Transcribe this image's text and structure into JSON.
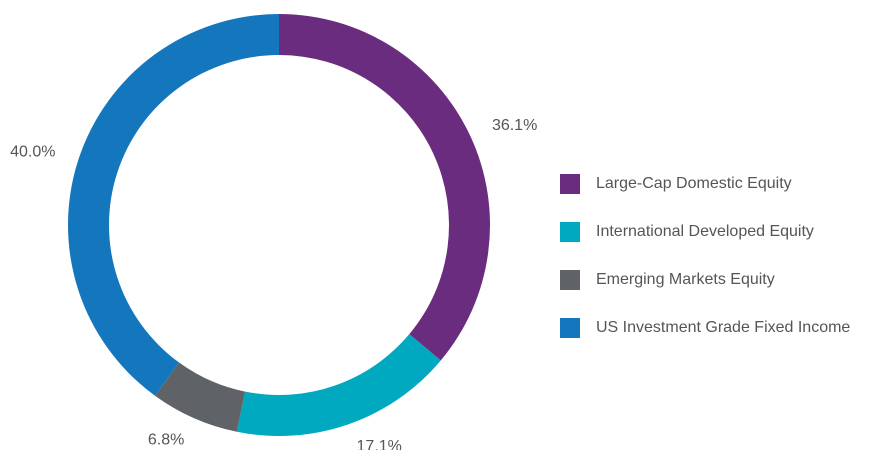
{
  "chart_data": {
    "type": "pie",
    "donut": true,
    "categories": [
      "Large-Cap Domestic Equity",
      "International Developed Equity",
      "Emerging Markets Equity",
      "US Investment Grade Fixed Income"
    ],
    "values": [
      36.1,
      17.1,
      6.8,
      40.0
    ],
    "value_labels": [
      "36.1%",
      "17.1%",
      "6.8%",
      "40.0%"
    ],
    "colors": [
      "#6a2c7e",
      "#00a9c0",
      "#5f6368",
      "#1476bd"
    ],
    "legend": "right"
  }
}
